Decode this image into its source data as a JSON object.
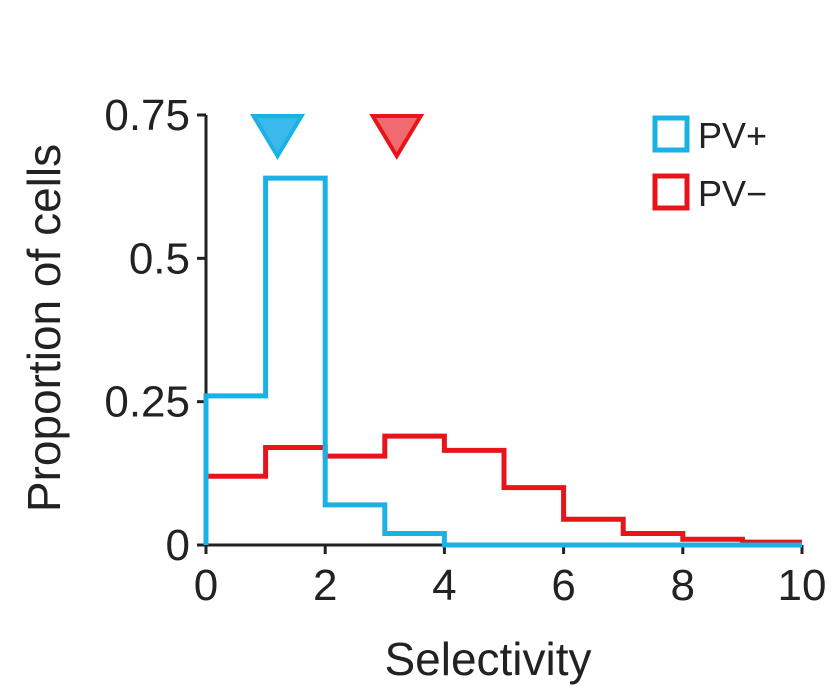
{
  "chart_data": {
    "type": "histogram",
    "title": "",
    "xlabel": "Selectivity",
    "ylabel": "Proportion of cells",
    "xlim": [
      0,
      10
    ],
    "ylim": [
      0,
      0.75
    ],
    "xticks": [
      0,
      2,
      4,
      6,
      8,
      10
    ],
    "xtick_labels": [
      "0",
      "2",
      "4",
      "6",
      "8",
      "10"
    ],
    "yticks": [
      0,
      0.25,
      0.5,
      0.75
    ],
    "ytick_labels": [
      "0",
      "0.25",
      "0.5",
      "0.75"
    ],
    "bin_edges": [
      0,
      1,
      2,
      3,
      4,
      5,
      6,
      7,
      8,
      9,
      10
    ],
    "series": [
      {
        "name": "PV+",
        "color": "#1ab2e6",
        "fill": "#3bb8ec",
        "values": [
          0.26,
          0.64,
          0.07,
          0.02,
          0.0,
          0.0,
          0.0,
          0.0,
          0.0,
          0.0
        ],
        "marker_x": 1.2
      },
      {
        "name": "PV−",
        "color": "#e8141c",
        "fill": "#f06b70",
        "values": [
          0.12,
          0.17,
          0.155,
          0.19,
          0.165,
          0.1,
          0.045,
          0.02,
          0.01,
          0.005
        ],
        "marker_x": 3.2
      }
    ],
    "legend_position": "top-right",
    "markers": "median arrowheads above plot"
  }
}
